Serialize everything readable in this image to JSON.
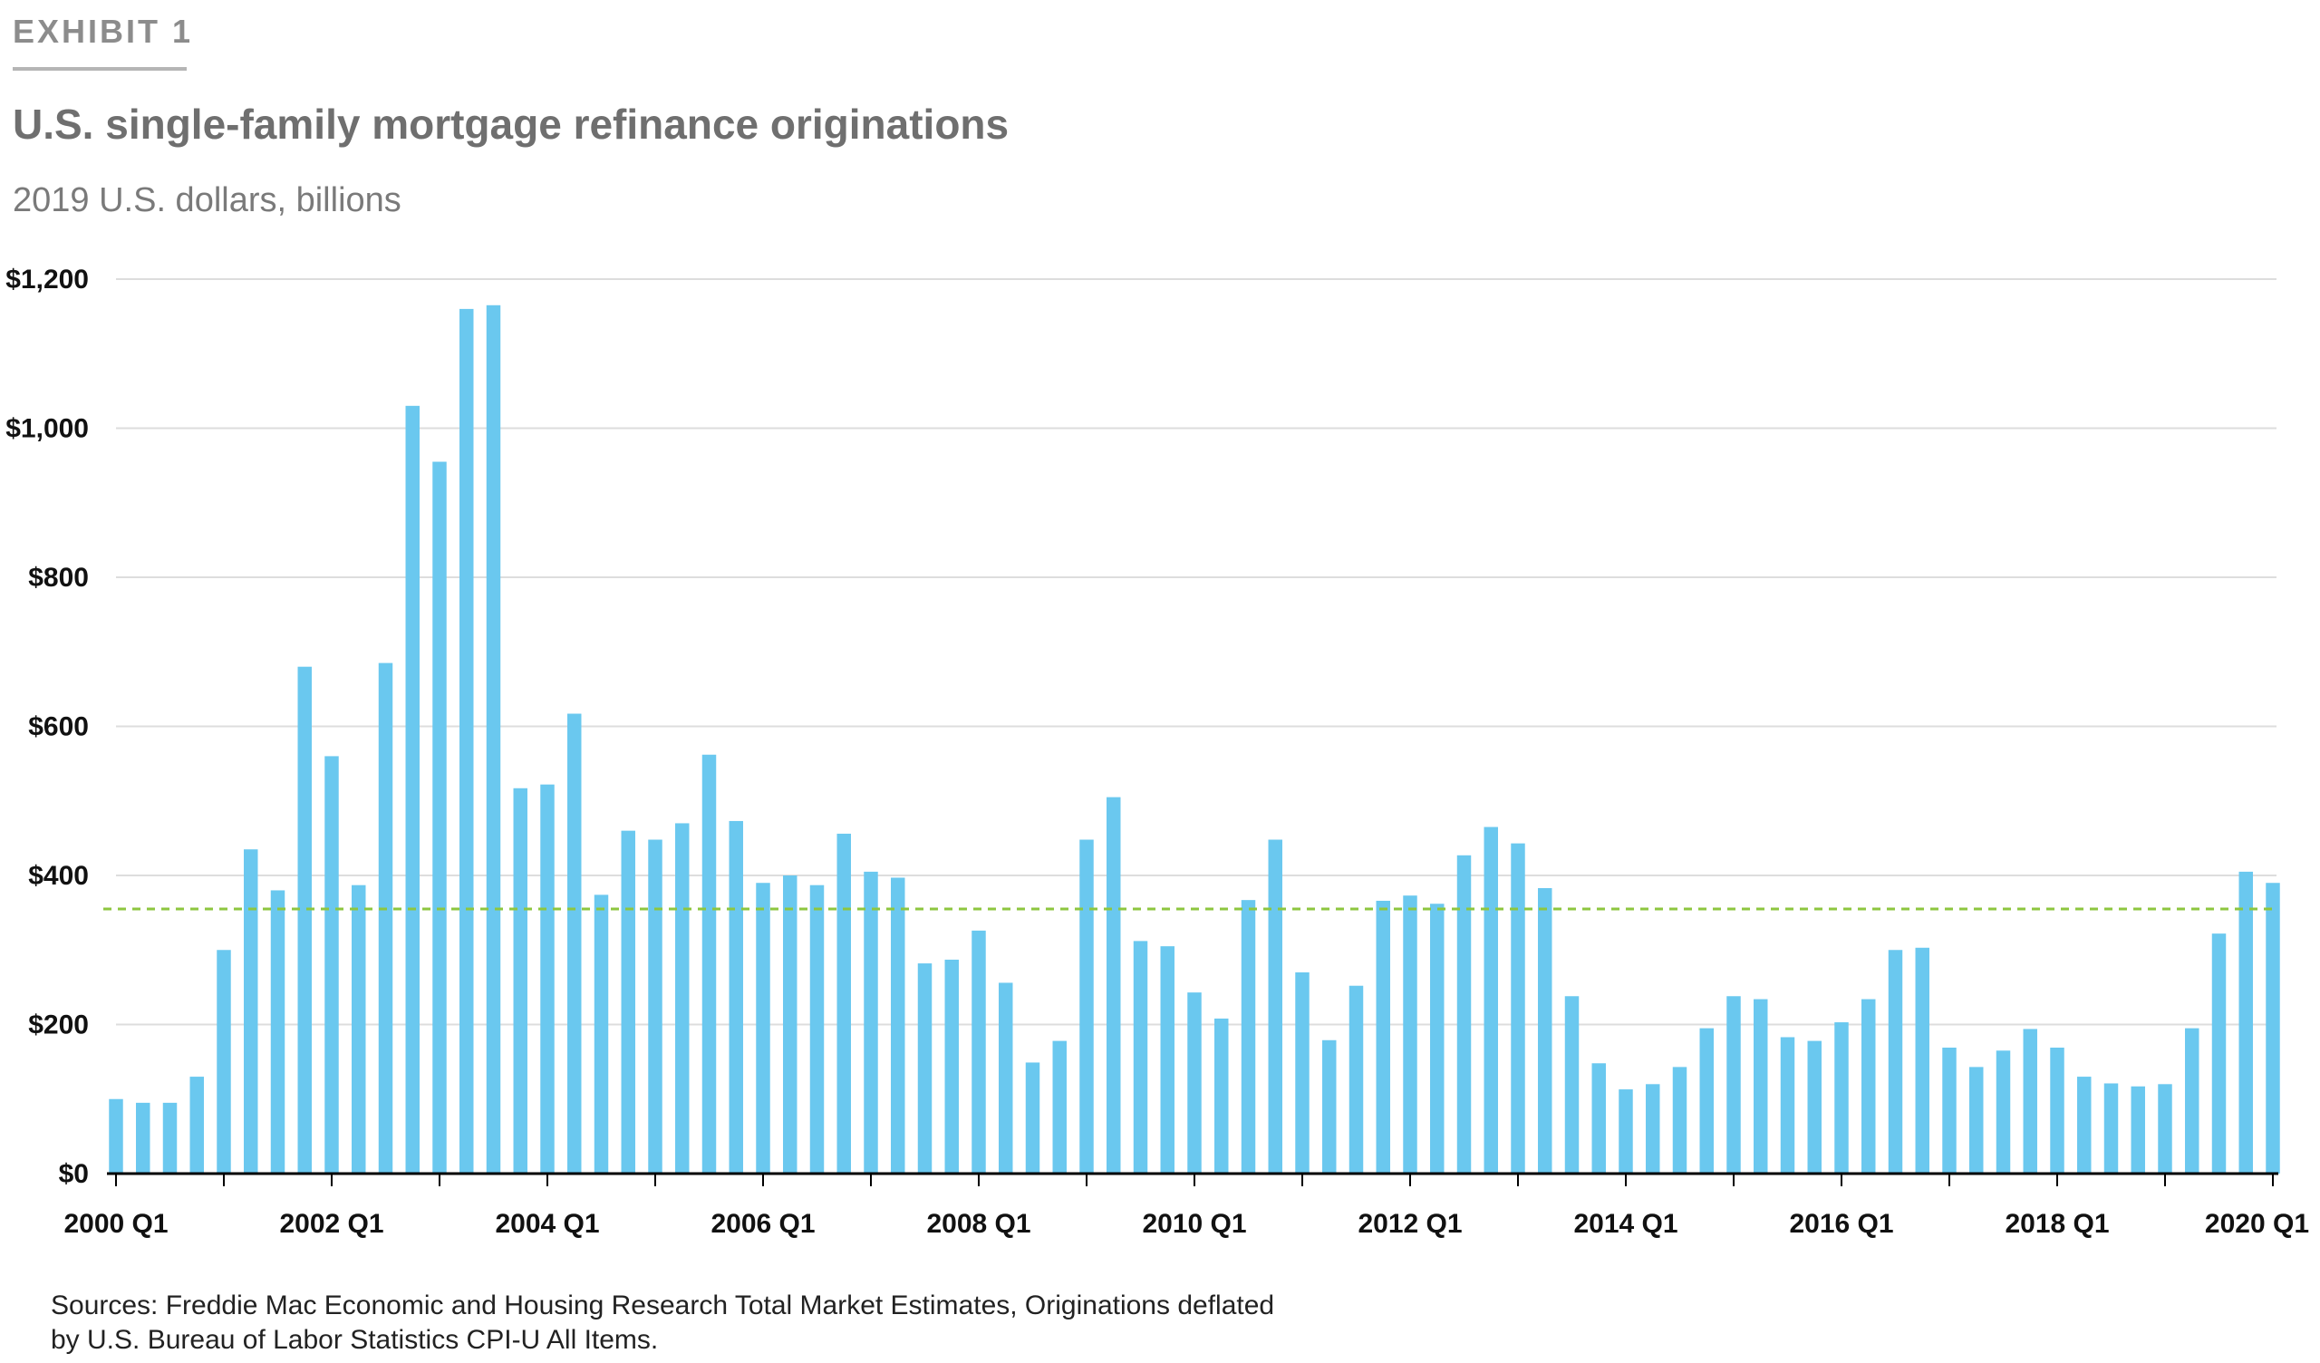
{
  "header": {
    "exhibit": "EXHIBIT 1",
    "title": "U.S. single-family mortgage refinance originations",
    "subtitle": "2019 U.S. dollars, billions"
  },
  "footer": {
    "sources_line1": "Sources: Freddie Mac Economic and Housing Research Total Market Estimates, Originations deflated",
    "sources_line2": "by U.S. Bureau of Labor Statistics CPI-U All Items."
  },
  "colors": {
    "bar": "#6ac8ef",
    "reference_line": "#8dc63f",
    "grid": "#dddddd",
    "axis": "#000000"
  },
  "chart_data": {
    "type": "bar",
    "title": "U.S. single-family mortgage refinance originations",
    "ylabel": "2019 U.S. dollars, billions",
    "xlabel": "",
    "ylim": [
      0,
      1200
    ],
    "yticks": [
      0,
      200,
      400,
      600,
      800,
      1000,
      1200
    ],
    "ytick_labels": [
      "$0",
      "$200",
      "$400",
      "$600",
      "$800",
      "$1,000",
      "$1,200"
    ],
    "xtick_labels": [
      "2000 Q1",
      "2002 Q1",
      "2004 Q1",
      "2006 Q1",
      "2008 Q1",
      "2010 Q1",
      "2012 Q1",
      "2014 Q1",
      "2016 Q1",
      "2018 Q1",
      "2020 Q1"
    ],
    "grid": true,
    "reference_line": 355,
    "categories": [
      "2000 Q1",
      "2000 Q2",
      "2000 Q3",
      "2000 Q4",
      "2001 Q1",
      "2001 Q2",
      "2001 Q3",
      "2001 Q4",
      "2002 Q1",
      "2002 Q2",
      "2002 Q3",
      "2002 Q4",
      "2003 Q1",
      "2003 Q2",
      "2003 Q3",
      "2003 Q4",
      "2004 Q1",
      "2004 Q2",
      "2004 Q3",
      "2004 Q4",
      "2005 Q1",
      "2005 Q2",
      "2005 Q3",
      "2005 Q4",
      "2006 Q1",
      "2006 Q2",
      "2006 Q3",
      "2006 Q4",
      "2007 Q1",
      "2007 Q2",
      "2007 Q3",
      "2007 Q4",
      "2008 Q1",
      "2008 Q2",
      "2008 Q3",
      "2008 Q4",
      "2009 Q1",
      "2009 Q2",
      "2009 Q3",
      "2009 Q4",
      "2010 Q1",
      "2010 Q2",
      "2010 Q3",
      "2010 Q4",
      "2011 Q1",
      "2011 Q2",
      "2011 Q3",
      "2011 Q4",
      "2012 Q1",
      "2012 Q2",
      "2012 Q3",
      "2012 Q4",
      "2013 Q1",
      "2013 Q2",
      "2013 Q3",
      "2013 Q4",
      "2014 Q1",
      "2014 Q2",
      "2014 Q3",
      "2014 Q4",
      "2015 Q1",
      "2015 Q2",
      "2015 Q3",
      "2015 Q4",
      "2016 Q1",
      "2016 Q2",
      "2016 Q3",
      "2016 Q4",
      "2017 Q1",
      "2017 Q2",
      "2017 Q3",
      "2017 Q4",
      "2018 Q1",
      "2018 Q2",
      "2018 Q3",
      "2018 Q4",
      "2019 Q1",
      "2019 Q2",
      "2019 Q3",
      "2019 Q4",
      "2020 Q1"
    ],
    "values": [
      100,
      95,
      95,
      130,
      300,
      435,
      380,
      680,
      560,
      387,
      685,
      1030,
      955,
      1160,
      1165,
      517,
      522,
      617,
      374,
      460,
      448,
      470,
      562,
      473,
      390,
      400,
      387,
      456,
      405,
      397,
      282,
      287,
      326,
      256,
      149,
      178,
      448,
      505,
      312,
      305,
      243,
      208,
      367,
      448,
      270,
      179,
      252,
      366,
      373,
      362,
      427,
      465,
      443,
      383,
      238,
      148,
      113,
      120,
      143,
      195,
      238,
      234,
      183,
      178,
      203,
      234,
      300,
      303,
      169,
      143,
      165,
      194,
      169,
      130,
      121,
      117,
      120,
      195,
      322,
      405,
      390
    ]
  }
}
